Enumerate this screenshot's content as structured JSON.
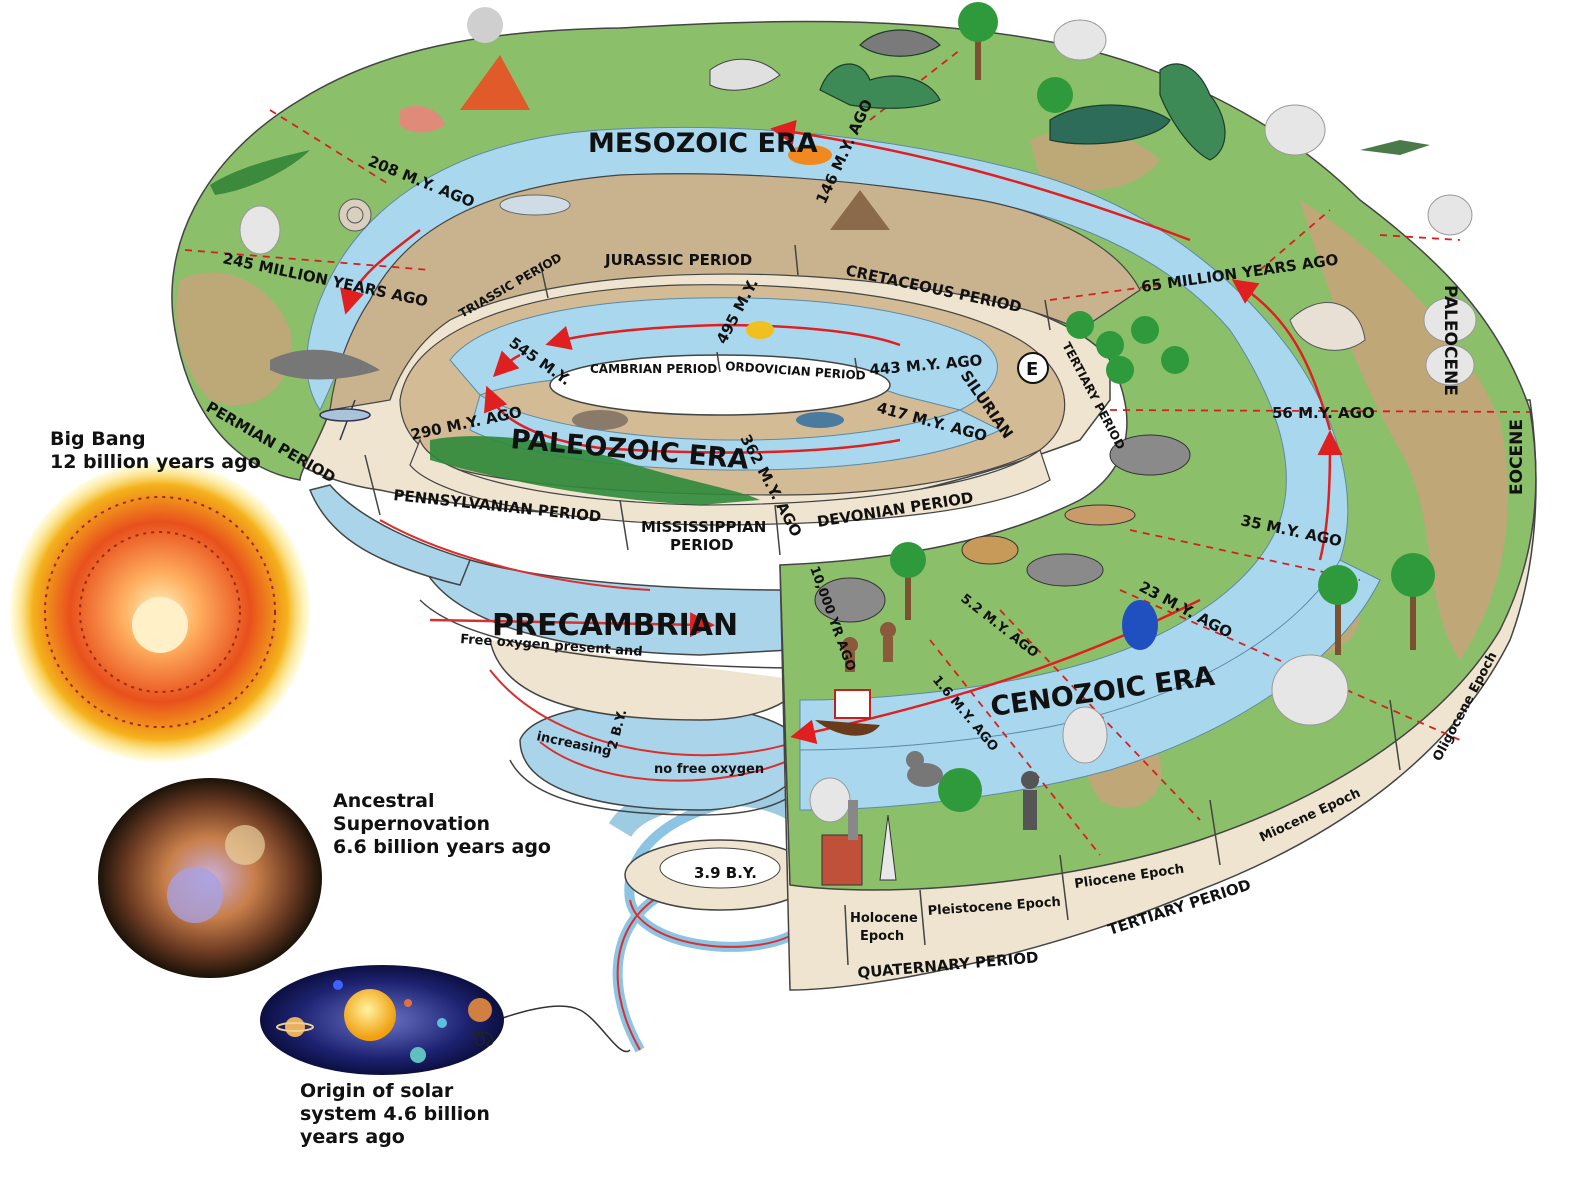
{
  "eras": {
    "mesozoic": "MESOZOIC ERA",
    "paleozoic": "PALEOZOIC ERA",
    "cenozoic": "CENOZOIC ERA",
    "precambrian": "PRECAMBRIAN"
  },
  "periods": {
    "triassic": "TRIASSIC PERIOD",
    "jurassic": "JURASSIC PERIOD",
    "cretaceous": "CRETACEOUS PERIOD",
    "tertiary_upper": "TERTIARY PERIOD",
    "cambrian": "CAMBRIAN PERIOD",
    "ordovician": "ORDOVICIAN PERIOD",
    "silurian": "SILURIAN",
    "permian": "PERMIAN PERIOD",
    "pennsylvanian": "PENNSYLVANIAN PERIOD",
    "mississippian_1": "MISSISSIPPIAN",
    "mississippian_2": "PERIOD",
    "devonian": "DEVONIAN PERIOD",
    "quaternary": "QUATERNARY PERIOD",
    "tertiary_lower": "TERTIARY PERIOD"
  },
  "epochs": {
    "paleocene": "PALEOCENE",
    "eocene": "EOCENE",
    "oligocene": "Oligocene Epoch",
    "miocene": "Miocene Epoch",
    "pliocene": "Pliocene Epoch",
    "pleistocene": "Pleistocene Epoch",
    "holocene_1": "Holocene",
    "holocene_2": "Epoch"
  },
  "dates": {
    "d245": "245 MILLION YEARS AGO",
    "d208": "208 M.Y. AGO",
    "d146": "146 M.Y. AGO",
    "d65": "65 MILLION YEARS AGO",
    "d56": "56 M.Y. AGO",
    "d35": "35 M.Y. AGO",
    "d23": "23 M.Y. AGO",
    "d5_2": "5.2 M.Y. AGO",
    "d1_6": "1.6 M.Y. AGO",
    "d10000": "10,000 YR AGO",
    "d545": "545 M.Y.",
    "d495": "495 M.Y.",
    "d443": "443 M.Y. AGO",
    "d417": "417 M.Y. AGO",
    "d362": "362 M.Y. AGO",
    "d290": "290 M.Y. AGO",
    "d2by": "2 B.Y.",
    "d3_9by": "3.9 B.Y."
  },
  "precambrian_notes": {
    "free_oxygen": "Free oxygen present and",
    "increasing": "increasing",
    "no_free_oxygen": "no free oxygen"
  },
  "marker": "E",
  "cosmic": {
    "big_bang": "Big Bang\n12 billion years ago",
    "supernova": "Ancestral\nSupernovation\n6.6 billion years ago",
    "solar_system": "Origin of solar\nsystem 4.6 billion\nyears ago"
  },
  "colors": {
    "land": "#8cbf6a",
    "desert": "#c9a27a",
    "water": "#a9d8ee",
    "rim": "#efe4cf",
    "arrow": "#e02020",
    "dash": "#d62020"
  }
}
